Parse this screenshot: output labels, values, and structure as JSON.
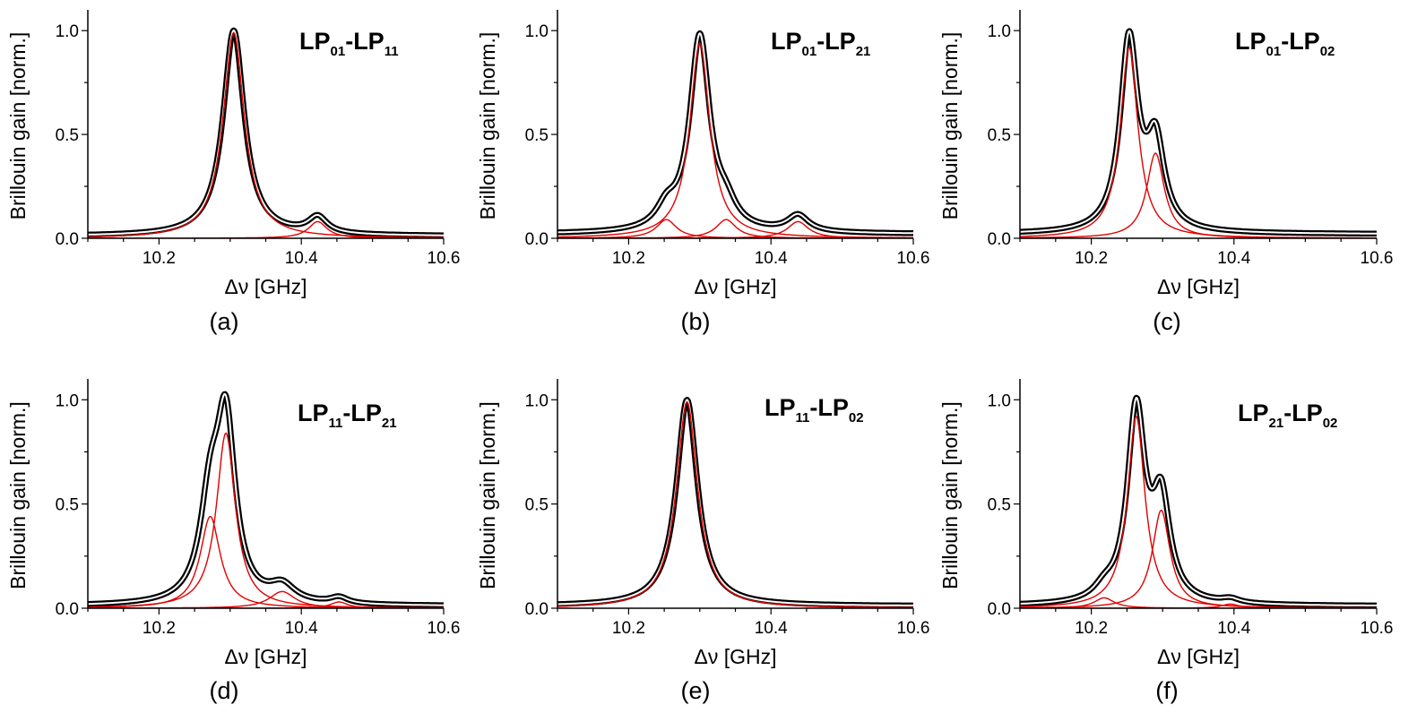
{
  "figure": {
    "colors": {
      "measured": "#000000",
      "measured_core": "#ffffff",
      "fit": "#e00000"
    }
  },
  "chart_data": [
    {
      "type": "line",
      "panel_label": "(a)",
      "title": {
        "main1": "LP",
        "sub1": "01",
        "main2": "-LP",
        "sub2": "11"
      },
      "xlabel": "Δν [GHz]",
      "ylabel": "Brillouin gain [norm.]",
      "xlim": [
        10.1,
        10.6
      ],
      "ylim": [
        0,
        1.1
      ],
      "xticks": [
        10.2,
        10.4,
        10.6
      ],
      "xtick_labels": [
        "10.2",
        "10.4",
        "10.6"
      ],
      "yticks": [
        0.0,
        0.5,
        1.0
      ],
      "ytick_labels": [
        "0.0",
        "0.5",
        "1.0"
      ],
      "grid": false,
      "baseline": 0.01,
      "fit_peaks": [
        {
          "center": 10.305,
          "amplitude": 0.99,
          "width": 0.018
        },
        {
          "center": 10.423,
          "amplitude": 0.08,
          "width": 0.016
        }
      ]
    },
    {
      "type": "line",
      "panel_label": "(b)",
      "title": {
        "main1": "LP",
        "sub1": "01",
        "main2": "-LP",
        "sub2": "21"
      },
      "xlabel": "Δν [GHz]",
      "ylabel": "Brillouin gain [norm.]",
      "xlim": [
        10.1,
        10.6
      ],
      "ylim": [
        0,
        1.1
      ],
      "xticks": [
        10.2,
        10.4,
        10.6
      ],
      "xtick_labels": [
        "10.2",
        "10.4",
        "10.6"
      ],
      "yticks": [
        0.0,
        0.5,
        1.0
      ],
      "ytick_labels": [
        "0.0",
        "0.5",
        "1.0"
      ],
      "grid": false,
      "baseline": 0.02,
      "fit_peaks": [
        {
          "center": 10.3,
          "amplitude": 0.94,
          "width": 0.017
        },
        {
          "center": 10.253,
          "amplitude": 0.09,
          "width": 0.017
        },
        {
          "center": 10.337,
          "amplitude": 0.09,
          "width": 0.017
        },
        {
          "center": 10.438,
          "amplitude": 0.08,
          "width": 0.018
        }
      ]
    },
    {
      "type": "line",
      "panel_label": "(c)",
      "title": {
        "main1": "LP",
        "sub1": "01",
        "main2": "-LP",
        "sub2": "02"
      },
      "xlabel": "Δν [GHz]",
      "ylabel": "Brillouin gain [norm.]",
      "xlim": [
        10.1,
        10.6
      ],
      "ylim": [
        0,
        1.1
      ],
      "xticks": [
        10.2,
        10.4,
        10.6
      ],
      "xtick_labels": [
        "10.2",
        "10.4",
        "10.6"
      ],
      "yticks": [
        0.0,
        0.5,
        1.0
      ],
      "ytick_labels": [
        "0.0",
        "0.5",
        "1.0"
      ],
      "grid": false,
      "baseline": 0.02,
      "fit_peaks": [
        {
          "center": 10.253,
          "amplitude": 0.92,
          "width": 0.015
        },
        {
          "center": 10.29,
          "amplitude": 0.41,
          "width": 0.015
        }
      ]
    },
    {
      "type": "line",
      "panel_label": "(d)",
      "title": {
        "main1": "LP",
        "sub1": "11",
        "main2": "-LP",
        "sub2": "21"
      },
      "xlabel": "Δν [GHz]",
      "ylabel": "Brillouin gain [norm.]",
      "xlim": [
        10.1,
        10.6
      ],
      "ylim": [
        0,
        1.1
      ],
      "xticks": [
        10.2,
        10.4,
        10.6
      ],
      "xtick_labels": [
        "10.2",
        "10.4",
        "10.6"
      ],
      "yticks": [
        0.0,
        0.5,
        1.0
      ],
      "ytick_labels": [
        "0.0",
        "0.5",
        "1.0"
      ],
      "grid": false,
      "baseline": 0.01,
      "fit_peaks": [
        {
          "center": 10.294,
          "amplitude": 0.84,
          "width": 0.016
        },
        {
          "center": 10.272,
          "amplitude": 0.44,
          "width": 0.017
        },
        {
          "center": 10.373,
          "amplitude": 0.08,
          "width": 0.022
        },
        {
          "center": 10.453,
          "amplitude": 0.03,
          "width": 0.015
        }
      ]
    },
    {
      "type": "line",
      "panel_label": "(e)",
      "title": {
        "main1": "LP",
        "sub1": "11",
        "main2": "-LP",
        "sub2": "02"
      },
      "xlabel": "Δν [GHz]",
      "ylabel": "Brillouin gain [norm.]",
      "xlim": [
        10.1,
        10.6
      ],
      "ylim": [
        0,
        1.1
      ],
      "xticks": [
        10.2,
        10.4,
        10.6
      ],
      "xtick_labels": [
        "10.2",
        "10.4",
        "10.6"
      ],
      "yticks": [
        0.0,
        0.5,
        1.0
      ],
      "ytick_labels": [
        "0.0",
        "0.5",
        "1.0"
      ],
      "grid": false,
      "baseline": 0.01,
      "fit_peaks": [
        {
          "center": 10.282,
          "amplitude": 0.99,
          "width": 0.018
        }
      ]
    },
    {
      "type": "line",
      "panel_label": "(f)",
      "title": {
        "main1": "LP",
        "sub1": "21",
        "main2": "-LP",
        "sub2": "02"
      },
      "xlabel": "Δν [GHz]",
      "ylabel": "Brillouin gain [norm.]",
      "xlim": [
        10.1,
        10.6
      ],
      "ylim": [
        0,
        1.1
      ],
      "xticks": [
        10.2,
        10.4,
        10.6
      ],
      "xtick_labels": [
        "10.2",
        "10.4",
        "10.6"
      ],
      "yticks": [
        0.0,
        0.5,
        1.0
      ],
      "ytick_labels": [
        "0.0",
        "0.5",
        "1.0"
      ],
      "grid": false,
      "baseline": 0.01,
      "fit_peaks": [
        {
          "center": 10.263,
          "amplitude": 0.92,
          "width": 0.015
        },
        {
          "center": 10.298,
          "amplitude": 0.47,
          "width": 0.015
        },
        {
          "center": 10.218,
          "amplitude": 0.05,
          "width": 0.017
        },
        {
          "center": 10.395,
          "amplitude": 0.02,
          "width": 0.015
        }
      ]
    }
  ]
}
